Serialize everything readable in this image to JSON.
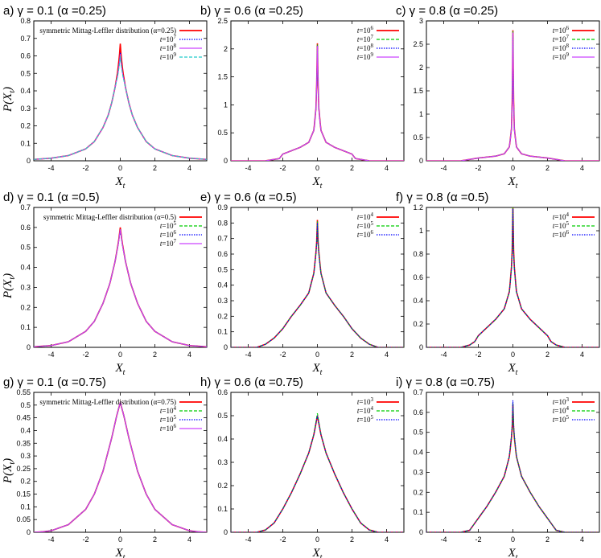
{
  "figure": {
    "xlabel": "X_t",
    "ylabel": "P(X_t)"
  },
  "chart_data": [
    {
      "panel": "a",
      "title": "a) γ = 0.1 (α =0.25)",
      "type": "line",
      "xlim": [
        -5,
        5
      ],
      "ylim": [
        0,
        0.8
      ],
      "xticks": [
        -4,
        -2,
        0,
        2,
        4
      ],
      "yticks": [
        0,
        0.1,
        0.2,
        0.3,
        0.4,
        0.5,
        0.6,
        0.7,
        0.8
      ],
      "xlabel": "X_t",
      "ylabel": "P(X_t)",
      "legend_position": "top-right",
      "series": [
        {
          "name": "symmetric Mittag-Leffler distribution (α=0.25)",
          "color": "#ff0000",
          "style": "solid",
          "peak": 0.67,
          "x": [
            -5,
            -4,
            -3,
            -2,
            -1.5,
            -1,
            -0.7,
            -0.5,
            -0.3,
            -0.15,
            -0.05,
            0,
            0.05,
            0.15,
            0.3,
            0.5,
            0.7,
            1,
            1.5,
            2,
            3,
            4,
            5
          ],
          "y": [
            0.008,
            0.015,
            0.03,
            0.068,
            0.11,
            0.19,
            0.26,
            0.33,
            0.42,
            0.51,
            0.6,
            0.67,
            0.6,
            0.51,
            0.42,
            0.33,
            0.26,
            0.19,
            0.11,
            0.068,
            0.03,
            0.015,
            0.008
          ]
        },
        {
          "name": "t=10^7",
          "label_base": "t=10",
          "exp": "7",
          "color": "#0000ff",
          "style": "dotted",
          "peak": 0.62
        },
        {
          "name": "t=10^8",
          "label_base": "t=10",
          "exp": "8",
          "color": "#cc44ff",
          "style": "solid",
          "peak": 0.61
        },
        {
          "name": "t=10^9",
          "label_base": "t=10",
          "exp": "9",
          "color": "#22cccc",
          "style": "dashed",
          "peak": 0.6
        }
      ]
    },
    {
      "panel": "b",
      "title": "b) γ = 0.6 (α =0.25)",
      "type": "line",
      "xlim": [
        -5,
        5
      ],
      "ylim": [
        0,
        2.5
      ],
      "xticks": [
        -4,
        -2,
        0,
        2,
        4
      ],
      "yticks": [
        0,
        0.5,
        1,
        1.5,
        2,
        2.5
      ],
      "xlabel": "X_t",
      "ylabel": "",
      "legend_position": "top-right",
      "series": [
        {
          "name": "t=10^6",
          "label_base": "t=10",
          "exp": "6",
          "color": "#ff0000",
          "style": "solid",
          "peak": 2.1,
          "x": [
            -5,
            -3,
            -2.2,
            -2,
            -1.5,
            -1,
            -0.5,
            -0.2,
            -0.08,
            -0.02,
            0,
            0.02,
            0.08,
            0.2,
            0.5,
            1,
            1.5,
            2,
            2.2,
            3,
            5
          ],
          "y": [
            0,
            0,
            0.04,
            0.12,
            0.18,
            0.24,
            0.33,
            0.55,
            0.95,
            1.6,
            2.1,
            1.6,
            0.95,
            0.55,
            0.33,
            0.24,
            0.18,
            0.12,
            0.04,
            0,
            0
          ]
        },
        {
          "name": "t=10^7",
          "label_base": "t=10",
          "exp": "7",
          "color": "#00cc00",
          "style": "dashed",
          "peak": 2.08
        },
        {
          "name": "t=10^8",
          "label_base": "t=10",
          "exp": "8",
          "color": "#0000ff",
          "style": "dotted",
          "peak": 2.06
        },
        {
          "name": "t=10^9",
          "label_base": "t=10",
          "exp": "9",
          "color": "#cc44ff",
          "style": "solid",
          "peak": 2.05
        }
      ]
    },
    {
      "panel": "c",
      "title": "c) γ = 0.8 (α =0.25)",
      "type": "line",
      "xlim": [
        -5,
        5
      ],
      "ylim": [
        0,
        3
      ],
      "xticks": [
        -4,
        -2,
        0,
        2,
        4
      ],
      "yticks": [
        0,
        0.5,
        1,
        1.5,
        2,
        2.5,
        3
      ],
      "xlabel": "X_t",
      "ylabel": "",
      "legend_position": "top-right",
      "series": [
        {
          "name": "t=10^6",
          "label_base": "t=10",
          "exp": "6",
          "color": "#ff0000",
          "style": "solid",
          "peak": 2.8,
          "x": [
            -5,
            -3,
            -2.5,
            -2,
            -1.5,
            -1,
            -0.5,
            -0.2,
            -0.08,
            -0.02,
            0,
            0.02,
            0.08,
            0.2,
            0.5,
            1,
            1.5,
            2,
            2.5,
            3,
            5
          ],
          "y": [
            0,
            0,
            0.03,
            0.06,
            0.08,
            0.1,
            0.15,
            0.3,
            0.7,
            1.6,
            2.8,
            1.6,
            0.7,
            0.3,
            0.15,
            0.1,
            0.08,
            0.06,
            0.03,
            0,
            0
          ]
        },
        {
          "name": "t=10^7",
          "label_base": "t=10",
          "exp": "7",
          "color": "#00cc00",
          "style": "dashed",
          "peak": 2.78
        },
        {
          "name": "t=10^8",
          "label_base": "t=10",
          "exp": "8",
          "color": "#0000ff",
          "style": "dotted",
          "peak": 2.76
        },
        {
          "name": "t=10^9",
          "label_base": "t=10",
          "exp": "9",
          "color": "#cc44ff",
          "style": "solid",
          "peak": 2.75
        }
      ]
    },
    {
      "panel": "d",
      "title": "d) γ = 0.1 (α =0.5)",
      "type": "line",
      "xlim": [
        -5,
        5
      ],
      "ylim": [
        0,
        0.7
      ],
      "xticks": [
        -4,
        -2,
        0,
        2,
        4
      ],
      "yticks": [
        0,
        0.1,
        0.2,
        0.3,
        0.4,
        0.5,
        0.6,
        0.7
      ],
      "xlabel": "X_t",
      "ylabel": "P(X_t)",
      "legend_position": "top-right",
      "series": [
        {
          "name": "symmetric Mittag-Leffler distribution (α=0.5)",
          "color": "#ff0000",
          "style": "solid",
          "peak": 0.6,
          "x": [
            -5,
            -4,
            -3,
            -2,
            -1.5,
            -1,
            -0.6,
            -0.3,
            -0.1,
            0,
            0.1,
            0.3,
            0.6,
            1,
            1.5,
            2,
            3,
            4,
            5
          ],
          "y": [
            0.003,
            0.009,
            0.028,
            0.08,
            0.13,
            0.22,
            0.32,
            0.43,
            0.53,
            0.6,
            0.53,
            0.43,
            0.32,
            0.22,
            0.13,
            0.08,
            0.028,
            0.009,
            0.003
          ]
        },
        {
          "name": "t=10^5",
          "label_base": "t=10",
          "exp": "5",
          "color": "#00cc00",
          "style": "dashed",
          "peak": 0.59
        },
        {
          "name": "t=10^6",
          "label_base": "t=10",
          "exp": "6",
          "color": "#0000ff",
          "style": "dotted",
          "peak": 0.59
        },
        {
          "name": "t=10^7",
          "label_base": "t=10",
          "exp": "7",
          "color": "#cc44ff",
          "style": "solid",
          "peak": 0.59
        }
      ]
    },
    {
      "panel": "e",
      "title": "e) γ = 0.6 (α =0.5)",
      "type": "line",
      "xlim": [
        -5,
        5
      ],
      "ylim": [
        0,
        0.9
      ],
      "xticks": [
        -4,
        -2,
        0,
        2,
        4
      ],
      "yticks": [
        0,
        0.1,
        0.2,
        0.3,
        0.4,
        0.5,
        0.6,
        0.7,
        0.8,
        0.9
      ],
      "xlabel": "X_t",
      "ylabel": "",
      "legend_position": "top-right",
      "series": [
        {
          "name": "t=10^4",
          "label_base": "t=10",
          "exp": "4",
          "color": "#ff0000",
          "style": "solid",
          "peak": 0.82,
          "x": [
            -5,
            -3.5,
            -3,
            -2.5,
            -2,
            -1.5,
            -1,
            -0.5,
            -0.2,
            -0.05,
            0,
            0.05,
            0.2,
            0.5,
            1,
            1.5,
            2,
            2.5,
            3,
            3.5,
            5
          ],
          "y": [
            0,
            0,
            0.02,
            0.06,
            0.12,
            0.2,
            0.27,
            0.35,
            0.48,
            0.65,
            0.82,
            0.65,
            0.48,
            0.35,
            0.27,
            0.2,
            0.12,
            0.06,
            0.02,
            0,
            0
          ]
        },
        {
          "name": "t=10^5",
          "label_base": "t=10",
          "exp": "5",
          "color": "#00cc00",
          "style": "dashed",
          "peak": 0.81
        },
        {
          "name": "t=10^6",
          "label_base": "t=10",
          "exp": "6",
          "color": "#0000ff",
          "style": "dotted",
          "peak": 0.8
        }
      ]
    },
    {
      "panel": "f",
      "title": "f) γ = 0.8 (α =0.5)",
      "type": "line",
      "xlim": [
        -5,
        5
      ],
      "ylim": [
        0,
        1.2
      ],
      "xticks": [
        -4,
        -2,
        0,
        2,
        4
      ],
      "yticks": [
        0,
        0.2,
        0.4,
        0.6,
        0.8,
        1,
        1.2
      ],
      "xlabel": "X_t",
      "ylabel": "",
      "legend_position": "top-right",
      "series": [
        {
          "name": "t=10^4",
          "label_base": "t=10",
          "exp": "4",
          "color": "#ff0000",
          "style": "solid",
          "peak": 1.22,
          "x": [
            -5,
            -3,
            -2.5,
            -2.2,
            -2,
            -1.5,
            -1,
            -0.5,
            -0.2,
            -0.05,
            0,
            0.05,
            0.2,
            0.5,
            1,
            1.5,
            2,
            2.2,
            2.5,
            3,
            5
          ],
          "y": [
            0,
            0,
            0.02,
            0.05,
            0.1,
            0.17,
            0.24,
            0.33,
            0.48,
            0.75,
            1.22,
            0.75,
            0.48,
            0.33,
            0.24,
            0.17,
            0.1,
            0.05,
            0.02,
            0,
            0
          ]
        },
        {
          "name": "t=10^5",
          "label_base": "t=10",
          "exp": "5",
          "color": "#00cc00",
          "style": "dashed",
          "peak": 1.2
        },
        {
          "name": "t=10^6",
          "label_base": "t=10",
          "exp": "6",
          "color": "#0000ff",
          "style": "dotted",
          "peak": 1.19
        }
      ]
    },
    {
      "panel": "g",
      "title": "g) γ = 0.1 (α =0.75)",
      "type": "line",
      "xlim": [
        -5,
        5
      ],
      "ylim": [
        0,
        0.55
      ],
      "xticks": [
        -4,
        -2,
        0,
        2,
        4
      ],
      "yticks": [
        0,
        0.05,
        0.1,
        0.15,
        0.2,
        0.25,
        0.3,
        0.35,
        0.4,
        0.45,
        0.5,
        0.55
      ],
      "xlabel": "X_t",
      "ylabel": "P(X_t)",
      "legend_position": "top-right",
      "series": [
        {
          "name": "symmetric Mittag-Leffler distribution (α=0.75)",
          "color": "#ff0000",
          "style": "solid",
          "peak": 0.51,
          "x": [
            -5,
            -4.5,
            -4,
            -3,
            -2,
            -1.5,
            -1,
            -0.5,
            -0.2,
            0,
            0.2,
            0.5,
            1,
            1.5,
            2,
            3,
            4,
            4.5,
            5
          ],
          "y": [
            0,
            0.002,
            0.006,
            0.03,
            0.09,
            0.15,
            0.24,
            0.37,
            0.46,
            0.51,
            0.46,
            0.37,
            0.24,
            0.15,
            0.09,
            0.03,
            0.006,
            0.002,
            0
          ]
        },
        {
          "name": "t=10^4",
          "label_base": "t=10",
          "exp": "4",
          "color": "#00cc00",
          "style": "dashed",
          "peak": 0.51
        },
        {
          "name": "t=10^5",
          "label_base": "t=10",
          "exp": "5",
          "color": "#0000ff",
          "style": "dotted",
          "peak": 0.51
        },
        {
          "name": "t=10^6",
          "label_base": "t=10",
          "exp": "6",
          "color": "#cc44ff",
          "style": "solid",
          "peak": 0.51
        }
      ]
    },
    {
      "panel": "h",
      "title": "h) γ = 0.6 (α =0.75)",
      "type": "line",
      "xlim": [
        -5,
        5
      ],
      "ylim": [
        0,
        0.6
      ],
      "xticks": [
        -4,
        -2,
        0,
        2,
        4
      ],
      "yticks": [
        0,
        0.1,
        0.2,
        0.3,
        0.4,
        0.5,
        0.6
      ],
      "xlabel": "X_t",
      "ylabel": "",
      "legend_position": "top-right",
      "series": [
        {
          "name": "t=10^3",
          "label_base": "t=10",
          "exp": "3",
          "color": "#ff0000",
          "style": "solid",
          "peak": 0.5,
          "x": [
            -5,
            -3.5,
            -3,
            -2.5,
            -2,
            -1.5,
            -1,
            -0.5,
            -0.2,
            0,
            0.2,
            0.5,
            1,
            1.5,
            2,
            2.5,
            3,
            3.5,
            5
          ],
          "y": [
            0,
            0,
            0.01,
            0.04,
            0.1,
            0.17,
            0.25,
            0.34,
            0.42,
            0.5,
            0.42,
            0.34,
            0.25,
            0.17,
            0.1,
            0.04,
            0.01,
            0,
            0
          ]
        },
        {
          "name": "t=10^4",
          "label_base": "t=10",
          "exp": "4",
          "color": "#00cc00",
          "style": "dashed",
          "peak": 0.51
        },
        {
          "name": "t=10^5",
          "label_base": "t=10",
          "exp": "5",
          "color": "#0000ff",
          "style": "dotted",
          "peak": 0.5
        }
      ]
    },
    {
      "panel": "i",
      "title": "i) γ = 0.8 (α =0.75)",
      "type": "line",
      "xlim": [
        -5,
        5
      ],
      "ylim": [
        0,
        0.7
      ],
      "xticks": [
        -4,
        -2,
        0,
        2,
        4
      ],
      "yticks": [
        0,
        0.1,
        0.2,
        0.3,
        0.4,
        0.5,
        0.6,
        0.7
      ],
      "xlabel": "X_t",
      "ylabel": "",
      "legend_position": "top-right",
      "series": [
        {
          "name": "t=10^3",
          "label_base": "t=10",
          "exp": "3",
          "color": "#ff0000",
          "style": "solid",
          "peak": 0.64,
          "x": [
            -5,
            -3,
            -2.5,
            -2,
            -1.5,
            -1,
            -0.5,
            -0.2,
            -0.05,
            0,
            0.05,
            0.2,
            0.5,
            1,
            1.5,
            2,
            2.5,
            3,
            5
          ],
          "y": [
            0,
            0,
            0.01,
            0.07,
            0.13,
            0.2,
            0.28,
            0.38,
            0.5,
            0.64,
            0.5,
            0.38,
            0.28,
            0.2,
            0.13,
            0.07,
            0.01,
            0,
            0
          ]
        },
        {
          "name": "t=10^4",
          "label_base": "t=10",
          "exp": "4",
          "color": "#00cc00",
          "style": "dashed",
          "peak": 0.65
        },
        {
          "name": "t=10^5",
          "label_base": "t=10",
          "exp": "5",
          "color": "#0000ff",
          "style": "dotted",
          "peak": 0.66
        }
      ]
    }
  ]
}
